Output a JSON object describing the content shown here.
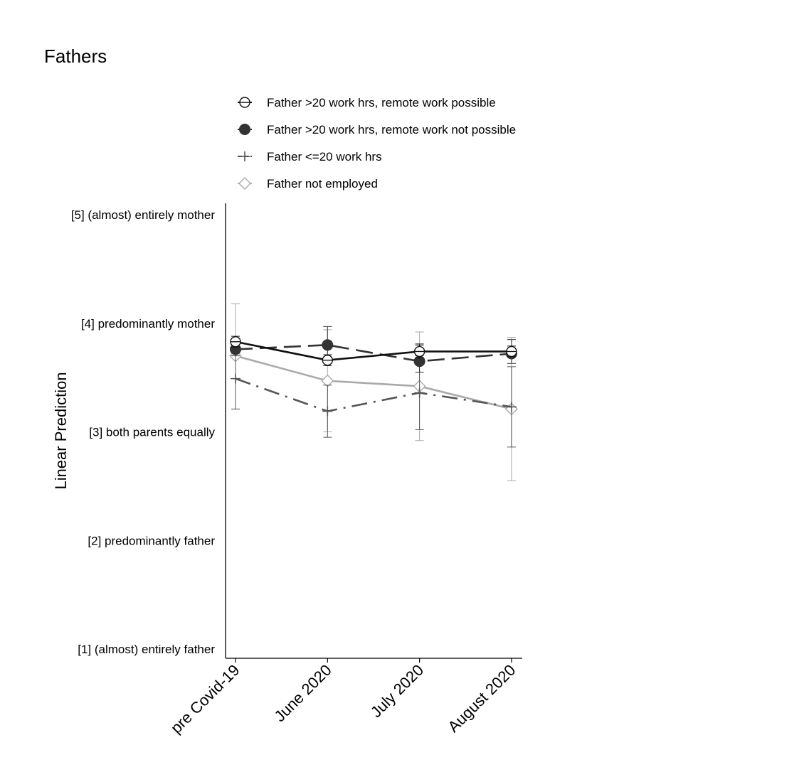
{
  "chart_data": {
    "type": "line",
    "title": "Fathers",
    "ylabel": "Linear Prediction",
    "xlabel": "",
    "categories": [
      "pre Covid-19",
      "June 2020",
      "July 2020",
      "August 2020"
    ],
    "ylim": [
      1,
      5
    ],
    "yticks": [
      {
        "value": 5,
        "label": "[5] (almost) entirely mother"
      },
      {
        "value": 4,
        "label": "[4] predominantly mother"
      },
      {
        "value": 3,
        "label": "[3] both parents equally"
      },
      {
        "value": 2,
        "label": "[2] predominantly father"
      },
      {
        "value": 1,
        "label": "[1] (almost) entirely father"
      }
    ],
    "grid": false,
    "legend_position": "top",
    "series": [
      {
        "name": "Father >20 work hrs, remote work possible",
        "color": "#111111",
        "marker": "hollow-circle",
        "line_style": "solid",
        "values": [
          3.83,
          3.66,
          3.74,
          3.74
        ],
        "ci_low": [
          3.78,
          3.61,
          3.68,
          3.69
        ],
        "ci_high": [
          3.88,
          3.71,
          3.8,
          3.79
        ]
      },
      {
        "name": "Father >20 work hrs, remote work not possible",
        "color": "#333333",
        "marker": "filled-circle",
        "line_style": "long-dash",
        "values": [
          3.76,
          3.8,
          3.65,
          3.72
        ],
        "ci_low": [
          3.7,
          3.67,
          3.55,
          3.63
        ],
        "ci_high": [
          3.83,
          3.97,
          3.81,
          3.85
        ]
      },
      {
        "name": "Father <=20 work hrs",
        "color": "#555555",
        "marker": "plus",
        "line_style": "dash-dot",
        "values": [
          3.49,
          3.19,
          3.36,
          3.23
        ],
        "ci_low": [
          3.21,
          2.95,
          3.02,
          2.86
        ],
        "ci_high": [
          3.77,
          3.43,
          3.7,
          3.6
        ]
      },
      {
        "name": "Father not employed",
        "color": "#aaaaaa",
        "marker": "hollow-diamond",
        "line_style": "solid",
        "values": [
          3.7,
          3.47,
          3.42,
          3.21
        ],
        "ci_low": [
          3.21,
          3.0,
          2.92,
          2.55
        ],
        "ci_high": [
          4.18,
          3.94,
          3.92,
          3.87
        ]
      }
    ]
  }
}
